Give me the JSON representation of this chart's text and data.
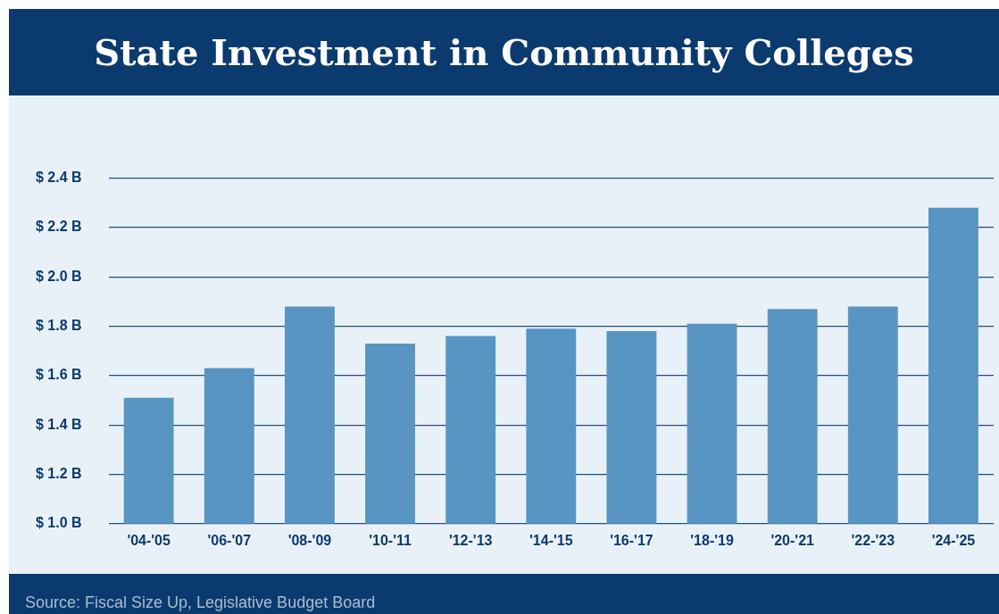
{
  "chart_data": {
    "type": "bar",
    "title": "State Investment in Community Colleges",
    "categories": [
      "'04-'05",
      "'06-'07",
      "'08-'09",
      "'10-'11",
      "'12-'13",
      "'14-'15",
      "'16-'17",
      "'18-'19",
      "'20-'21",
      "'22-'23",
      "'24-'25"
    ],
    "values": [
      1.51,
      1.63,
      1.88,
      1.73,
      1.76,
      1.79,
      1.78,
      1.81,
      1.87,
      1.88,
      2.28
    ],
    "color": "#5895c2",
    "ylim": [
      1.0,
      2.4
    ],
    "yticks": [
      {
        "value": 1.0,
        "label": "$ 1.0 B"
      },
      {
        "value": 1.2,
        "label": "$ 1.2 B"
      },
      {
        "value": 1.4,
        "label": "$ 1.4 B"
      },
      {
        "value": 1.6,
        "label": "$ 1.6 B"
      },
      {
        "value": 1.8,
        "label": "$ 1.8 B"
      },
      {
        "value": 2.0,
        "label": "$ 2.0 B"
      },
      {
        "value": 2.2,
        "label": "$ 2.2 B"
      },
      {
        "value": 2.4,
        "label": "$ 2.4 B"
      }
    ],
    "grid": "y",
    "annotations": [
      "Source: Fiscal Size Up, Legislative Budget Board"
    ]
  }
}
